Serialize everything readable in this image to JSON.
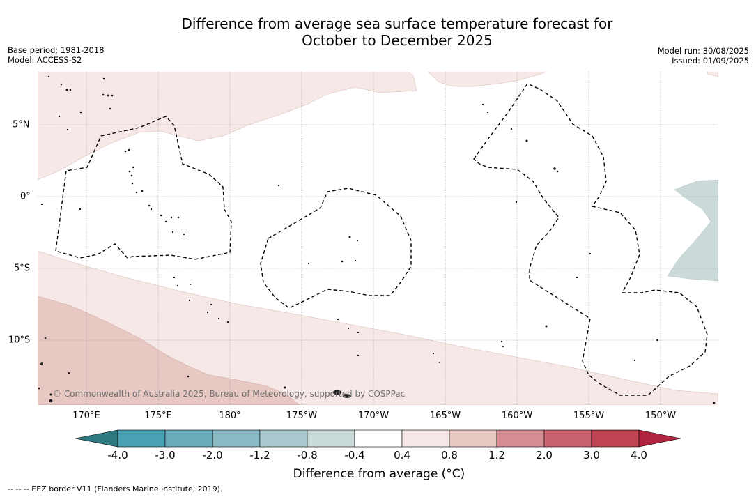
{
  "title_line1": "Difference from average sea surface temperature forecast for",
  "title_line2": "October to December 2025",
  "meta_left": {
    "base_period": "Base period: 1981-2018",
    "model": "Model: ACCESS-S2"
  },
  "meta_right": {
    "model_run": "Model run: 30/08/2025",
    "issued": "Issued: 01/09/2025"
  },
  "lon_labels": [
    "170°E",
    "175°E",
    "180°",
    "175°W",
    "170°W",
    "165°W",
    "160°W",
    "155°W",
    "150°W"
  ],
  "lat_labels": [
    "5°N",
    "0°",
    "5°S",
    "10°S"
  ],
  "copyright": "© Commonwealth of Australia 2025, Bureau of Meteorology, supported by COSPPac",
  "colorbar": {
    "ticks": [
      "-4.0",
      "-3.0",
      "-2.0",
      "-1.2",
      "-0.8",
      "-0.4",
      "0.4",
      "0.8",
      "1.2",
      "2.0",
      "3.0",
      "4.0"
    ],
    "colors": [
      "#2f7a80",
      "#4aa1b3",
      "#6aacba",
      "#8ab9c4",
      "#aac9ce",
      "#c9d9d8",
      "#ffffff",
      "#f5e8e6",
      "#e8c8c3",
      "#d68e95",
      "#c9636f",
      "#bf4554",
      "#b0243f"
    ],
    "label": "Difference from average (°C)"
  },
  "footnote": "--  --  -- EEZ border V11 (Flanders Marine Institute, 2019)."
}
